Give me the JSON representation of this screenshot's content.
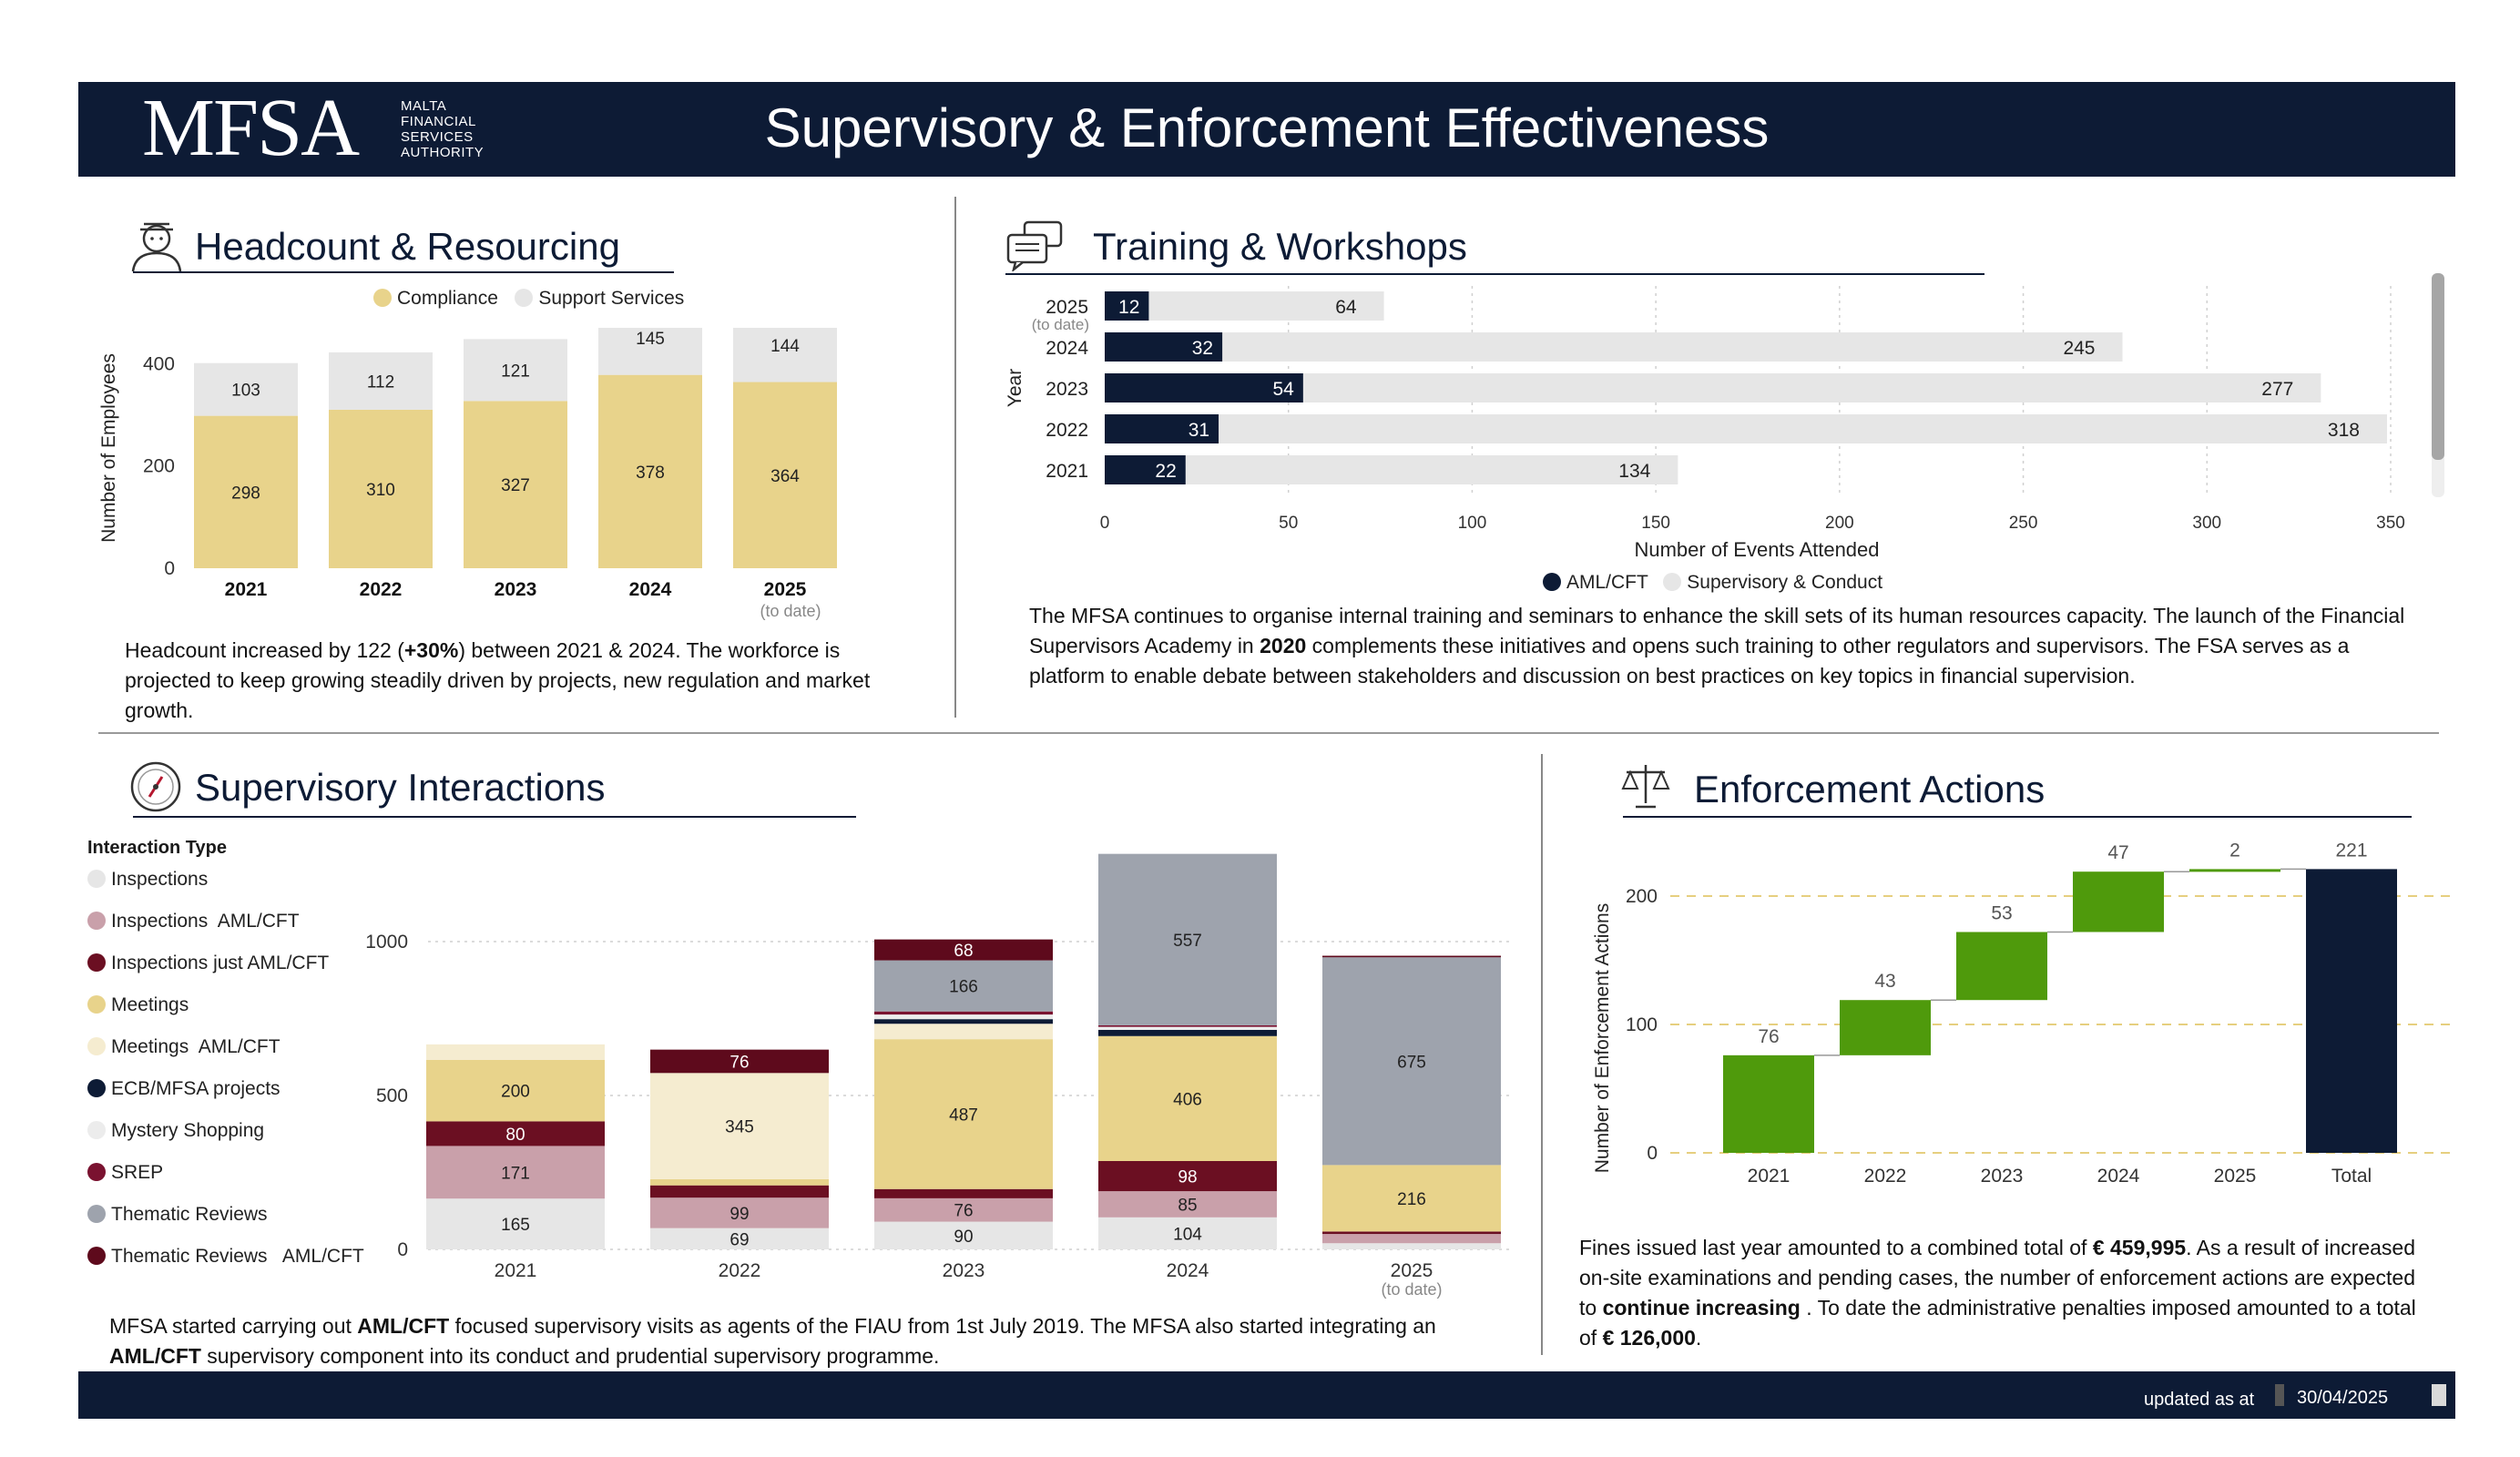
{
  "header": {
    "logo_mark": "MFSA",
    "logo_line1": "MALTA",
    "logo_line2": "FINANCIAL",
    "logo_line3": "SERVICES",
    "logo_line4": "AUTHORITY",
    "title": "Supervisory & Enforcement Effectiveness"
  },
  "footer": {
    "updated_label": "updated as at",
    "updated_date": "30/04/2025"
  },
  "headcount": {
    "title": "Headcount & Resourcing",
    "legend_compliance": "Compliance",
    "legend_support": "Support Services",
    "paragraph_pre": "Headcount increased by 122 (",
    "paragraph_bold": "+30%",
    "paragraph_post": ") between 2021 & 2024. The workforce is projected to keep growing steadily driven by projects, new regulation and market growth.",
    "chart_data": {
      "type": "bar",
      "stacked": true,
      "categories": [
        "2021",
        "2022",
        "2023",
        "2024",
        "2025"
      ],
      "category_note": {
        "2025": "(to date)"
      },
      "series": [
        {
          "name": "Compliance",
          "values": [
            298,
            310,
            327,
            378,
            364
          ],
          "color": "#e8d38b"
        },
        {
          "name": "Support Services",
          "values": [
            103,
            112,
            121,
            145,
            144
          ],
          "color": "#e6e6e6"
        }
      ],
      "ylabel": "Number of Employees",
      "yticks": [
        0,
        200,
        400
      ],
      "ylim": [
        0,
        470
      ]
    }
  },
  "training": {
    "title": "Training & Workshops",
    "paragraph_pre": "The MFSA continues to organise internal training and seminars to enhance the skill sets of its human resources capacity. The launch of the Financial Supervisors Academy in ",
    "paragraph_bold": "2020",
    "paragraph_post": " complements these initiatives and opens such training to other regulators and supervisors. The FSA serves as a platform to enable debate between stakeholders and discussion on best practices on key topics in financial supervision.",
    "chart_data": {
      "type": "bar",
      "orientation": "horizontal",
      "categories": [
        "2025",
        "2024",
        "2023",
        "2022",
        "2021"
      ],
      "category_note": {
        "2025": "(to date)"
      },
      "series": [
        {
          "name": "AML/CFT",
          "values": [
            12,
            32,
            54,
            31,
            22
          ],
          "color": "#0d1b35"
        },
        {
          "name": "Supervisory & Conduct",
          "values": [
            64,
            245,
            277,
            318,
            134
          ],
          "color": "#e6e6e6"
        }
      ],
      "xlabel": "Number of Events Attended",
      "ylabel": "Year",
      "xticks": [
        0,
        50,
        100,
        150,
        200,
        250,
        300,
        350
      ],
      "xlim": [
        0,
        350
      ],
      "legend_position": "bottom"
    }
  },
  "interactions": {
    "title": "Supervisory Interactions",
    "legend_title": "Interaction Type",
    "paragraph_pre": "MFSA started carrying out ",
    "paragraph_bold1": "AML/CFT",
    "paragraph_mid": " focused supervisory visits as agents of the FIAU from 1st July 2019. The MFSA also started integrating an ",
    "paragraph_bold2": "AML/CFT",
    "paragraph_post": " supervisory component into its conduct and prudential supervisory programme.",
    "chart_data": {
      "type": "bar",
      "stacked": true,
      "categories": [
        "2021",
        "2022",
        "2023",
        "2024",
        "2025"
      ],
      "category_note": {
        "2025": "(to date)"
      },
      "series": [
        {
          "name": "Inspections",
          "color": "#e6e6e6",
          "values": [
            165,
            69,
            90,
            104,
            20
          ],
          "labels": [
            "165",
            "69",
            "90",
            "104",
            ""
          ]
        },
        {
          "name": "Inspections  AML/CFT",
          "color": "#c9a0aa",
          "values": [
            171,
            99,
            76,
            85,
            30
          ],
          "labels": [
            "171",
            "99",
            "76",
            "85",
            ""
          ]
        },
        {
          "name": "Inspections just AML/CFT",
          "color": "#6b0f22",
          "values": [
            80,
            40,
            30,
            98,
            8
          ],
          "labels": [
            "80",
            "",
            "",
            "98",
            ""
          ]
        },
        {
          "name": "Meetings",
          "color": "#e8d38b",
          "values": [
            200,
            20,
            487,
            406,
            216
          ],
          "labels": [
            "200",
            "",
            "487",
            "406",
            "216"
          ]
        },
        {
          "name": "Meetings  AML/CFT",
          "color": "#f5ecd0",
          "values": [
            50,
            345,
            50,
            0,
            0
          ],
          "labels": [
            "",
            "345",
            "",
            "",
            ""
          ]
        },
        {
          "name": "ECB/MFSA projects",
          "color": "#0d1b35",
          "values": [
            0,
            0,
            15,
            20,
            0
          ],
          "labels": [
            "",
            "",
            "",
            "",
            ""
          ]
        },
        {
          "name": "Mystery Shopping",
          "color": "#ececec",
          "values": [
            0,
            0,
            15,
            10,
            0
          ],
          "labels": [
            "",
            "",
            "",
            "",
            ""
          ]
        },
        {
          "name": "SREP",
          "color": "#7a1230",
          "values": [
            0,
            0,
            10,
            5,
            0
          ],
          "labels": [
            "",
            "",
            "",
            "",
            ""
          ]
        },
        {
          "name": "Thematic Reviews",
          "color": "#9ea3ad",
          "values": [
            0,
            0,
            166,
            557,
            675
          ],
          "labels": [
            "",
            "",
            "166",
            "557",
            "675"
          ]
        },
        {
          "name": "Thematic Reviews   AML/CFT",
          "color": "#5e0a1c",
          "values": [
            0,
            76,
            68,
            0,
            5
          ],
          "labels": [
            "",
            "76",
            "68",
            "",
            ""
          ]
        }
      ],
      "yticks": [
        0,
        500,
        1000
      ],
      "ylim": [
        0,
        1310
      ],
      "legend_position": "left"
    }
  },
  "enforcement": {
    "title": "Enforcement Actions",
    "paragraph_pre": "Fines issued last year amounted to a combined total of ",
    "paragraph_bold1": "€ 459,995",
    "paragraph_mid1": ". As a result of increased on-site examinations and pending cases, the number of enforcement actions are expected to ",
    "paragraph_bold2": "continue increasing",
    "paragraph_mid2": " . To date the administrative penalties imposed amounted to a total of ",
    "paragraph_bold3": "€ 126,000",
    "paragraph_post": ".",
    "chart_data": {
      "type": "bar",
      "subtype": "waterfall",
      "categories": [
        "2021",
        "2022",
        "2023",
        "2024",
        "2025",
        "Total"
      ],
      "values": [
        76,
        43,
        53,
        47,
        2,
        221
      ],
      "increase_color": "#4f9a0c",
      "total_color": "#0d1b35",
      "ylabel": "Number of Enforcement Actions",
      "yticks": [
        0,
        100,
        200
      ],
      "ylim": [
        0,
        250
      ]
    }
  }
}
